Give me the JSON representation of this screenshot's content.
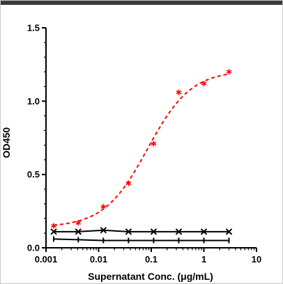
{
  "chart_data": {
    "type": "scatter",
    "title": "",
    "xlabel": "Supernatant Conc. (μg/mL)",
    "ylabel": "OD450",
    "xscale": "log",
    "xlim": [
      0.001,
      10
    ],
    "ylim": [
      0.0,
      1.5
    ],
    "x_ticks": [
      0.001,
      0.01,
      0.1,
      1,
      10
    ],
    "x_tick_labels": [
      "0.001",
      "0.01",
      "0.1",
      "1",
      "10"
    ],
    "y_ticks": [
      0.0,
      0.5,
      1.0,
      1.5
    ],
    "y_tick_labels": [
      "0.0",
      "0.5",
      "1.0",
      "1.5"
    ],
    "grid": false,
    "legend": "none",
    "series": [
      {
        "marker": "star",
        "color": "#ff0000",
        "line_style": "dashed",
        "fit": "sigmoidal",
        "x": [
          0.0014,
          0.0041,
          0.0123,
          0.037,
          0.111,
          0.333,
          1.0,
          3.0
        ],
        "y": [
          0.15,
          0.17,
          0.28,
          0.44,
          0.71,
          1.06,
          1.12,
          1.2
        ]
      },
      {
        "marker": "x",
        "color": "#000000",
        "line_style": "solid",
        "x": [
          0.0014,
          0.0041,
          0.0123,
          0.037,
          0.111,
          0.333,
          1.0,
          3.0
        ],
        "y": [
          0.11,
          0.11,
          0.12,
          0.11,
          0.11,
          0.11,
          0.11,
          0.11
        ]
      },
      {
        "marker": "tick",
        "color": "#000000",
        "line_style": "solid",
        "x": [
          0.0014,
          0.0041,
          0.0123,
          0.037,
          0.111,
          0.333,
          1.0,
          3.0
        ],
        "y": [
          0.06,
          0.055,
          0.05,
          0.05,
          0.05,
          0.05,
          0.05,
          0.05
        ]
      }
    ]
  }
}
